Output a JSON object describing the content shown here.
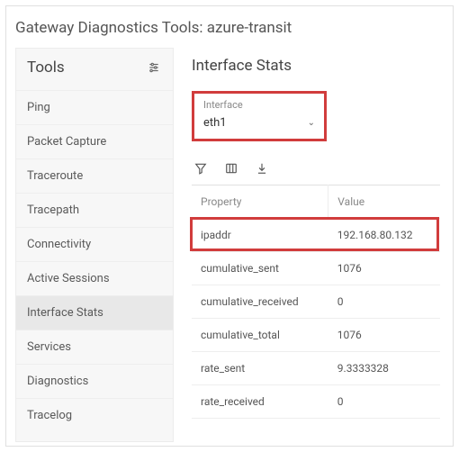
{
  "page_title": "Gateway Diagnostics Tools: azure-transit",
  "sidebar": {
    "heading": "Tools",
    "items": [
      {
        "label": "Ping"
      },
      {
        "label": "Packet Capture"
      },
      {
        "label": "Traceroute"
      },
      {
        "label": "Tracepath"
      },
      {
        "label": "Connectivity"
      },
      {
        "label": "Active Sessions"
      },
      {
        "label": "Interface Stats",
        "selected": true
      },
      {
        "label": "Services"
      },
      {
        "label": "Diagnostics"
      },
      {
        "label": "Tracelog"
      }
    ]
  },
  "main": {
    "heading": "Interface Stats",
    "selector": {
      "label": "Interface",
      "value": "eth1"
    },
    "table": {
      "columns": [
        "Property",
        "Value"
      ],
      "rows": [
        {
          "property": "ipaddr",
          "value": "192.168.80.132",
          "highlight": true
        },
        {
          "property": "cumulative_sent",
          "value": "1076"
        },
        {
          "property": "cumulative_received",
          "value": "0"
        },
        {
          "property": "cumulative_total",
          "value": "1076"
        },
        {
          "property": "rate_sent",
          "value": "9.3333328"
        },
        {
          "property": "rate_received",
          "value": "0"
        }
      ]
    }
  },
  "colors": {
    "highlight": "#d13c3c",
    "border": "#e0e0e0",
    "sidebar_bg": "#f7f7f7",
    "selected_bg": "#e8e8e8"
  }
}
